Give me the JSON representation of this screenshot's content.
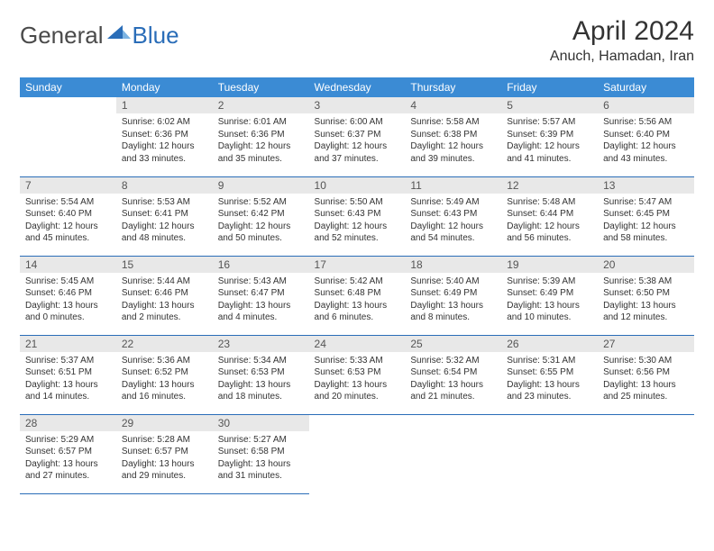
{
  "brand": {
    "part1": "General",
    "part2": "Blue"
  },
  "title": "April 2024",
  "location": "Anuch, Hamadan, Iran",
  "colors": {
    "header_bg": "#3b8bd4",
    "row_border": "#2a6db8",
    "daynum_bg": "#e8e8e8",
    "brand_blue": "#2a6db8"
  },
  "dayNames": [
    "Sunday",
    "Monday",
    "Tuesday",
    "Wednesday",
    "Thursday",
    "Friday",
    "Saturday"
  ],
  "weeks": [
    [
      {
        "n": "",
        "empty": true
      },
      {
        "n": "1",
        "sunrise": "6:02 AM",
        "sunset": "6:36 PM",
        "dl1": "12 hours",
        "dl2": "33 minutes."
      },
      {
        "n": "2",
        "sunrise": "6:01 AM",
        "sunset": "6:36 PM",
        "dl1": "12 hours",
        "dl2": "35 minutes."
      },
      {
        "n": "3",
        "sunrise": "6:00 AM",
        "sunset": "6:37 PM",
        "dl1": "12 hours",
        "dl2": "37 minutes."
      },
      {
        "n": "4",
        "sunrise": "5:58 AM",
        "sunset": "6:38 PM",
        "dl1": "12 hours",
        "dl2": "39 minutes."
      },
      {
        "n": "5",
        "sunrise": "5:57 AM",
        "sunset": "6:39 PM",
        "dl1": "12 hours",
        "dl2": "41 minutes."
      },
      {
        "n": "6",
        "sunrise": "5:56 AM",
        "sunset": "6:40 PM",
        "dl1": "12 hours",
        "dl2": "43 minutes."
      }
    ],
    [
      {
        "n": "7",
        "sunrise": "5:54 AM",
        "sunset": "6:40 PM",
        "dl1": "12 hours",
        "dl2": "45 minutes."
      },
      {
        "n": "8",
        "sunrise": "5:53 AM",
        "sunset": "6:41 PM",
        "dl1": "12 hours",
        "dl2": "48 minutes."
      },
      {
        "n": "9",
        "sunrise": "5:52 AM",
        "sunset": "6:42 PM",
        "dl1": "12 hours",
        "dl2": "50 minutes."
      },
      {
        "n": "10",
        "sunrise": "5:50 AM",
        "sunset": "6:43 PM",
        "dl1": "12 hours",
        "dl2": "52 minutes."
      },
      {
        "n": "11",
        "sunrise": "5:49 AM",
        "sunset": "6:43 PM",
        "dl1": "12 hours",
        "dl2": "54 minutes."
      },
      {
        "n": "12",
        "sunrise": "5:48 AM",
        "sunset": "6:44 PM",
        "dl1": "12 hours",
        "dl2": "56 minutes."
      },
      {
        "n": "13",
        "sunrise": "5:47 AM",
        "sunset": "6:45 PM",
        "dl1": "12 hours",
        "dl2": "58 minutes."
      }
    ],
    [
      {
        "n": "14",
        "sunrise": "5:45 AM",
        "sunset": "6:46 PM",
        "dl1": "13 hours",
        "dl2": "0 minutes."
      },
      {
        "n": "15",
        "sunrise": "5:44 AM",
        "sunset": "6:46 PM",
        "dl1": "13 hours",
        "dl2": "2 minutes."
      },
      {
        "n": "16",
        "sunrise": "5:43 AM",
        "sunset": "6:47 PM",
        "dl1": "13 hours",
        "dl2": "4 minutes."
      },
      {
        "n": "17",
        "sunrise": "5:42 AM",
        "sunset": "6:48 PM",
        "dl1": "13 hours",
        "dl2": "6 minutes."
      },
      {
        "n": "18",
        "sunrise": "5:40 AM",
        "sunset": "6:49 PM",
        "dl1": "13 hours",
        "dl2": "8 minutes."
      },
      {
        "n": "19",
        "sunrise": "5:39 AM",
        "sunset": "6:49 PM",
        "dl1": "13 hours",
        "dl2": "10 minutes."
      },
      {
        "n": "20",
        "sunrise": "5:38 AM",
        "sunset": "6:50 PM",
        "dl1": "13 hours",
        "dl2": "12 minutes."
      }
    ],
    [
      {
        "n": "21",
        "sunrise": "5:37 AM",
        "sunset": "6:51 PM",
        "dl1": "13 hours",
        "dl2": "14 minutes."
      },
      {
        "n": "22",
        "sunrise": "5:36 AM",
        "sunset": "6:52 PM",
        "dl1": "13 hours",
        "dl2": "16 minutes."
      },
      {
        "n": "23",
        "sunrise": "5:34 AM",
        "sunset": "6:53 PM",
        "dl1": "13 hours",
        "dl2": "18 minutes."
      },
      {
        "n": "24",
        "sunrise": "5:33 AM",
        "sunset": "6:53 PM",
        "dl1": "13 hours",
        "dl2": "20 minutes."
      },
      {
        "n": "25",
        "sunrise": "5:32 AM",
        "sunset": "6:54 PM",
        "dl1": "13 hours",
        "dl2": "21 minutes."
      },
      {
        "n": "26",
        "sunrise": "5:31 AM",
        "sunset": "6:55 PM",
        "dl1": "13 hours",
        "dl2": "23 minutes."
      },
      {
        "n": "27",
        "sunrise": "5:30 AM",
        "sunset": "6:56 PM",
        "dl1": "13 hours",
        "dl2": "25 minutes."
      }
    ],
    [
      {
        "n": "28",
        "sunrise": "5:29 AM",
        "sunset": "6:57 PM",
        "dl1": "13 hours",
        "dl2": "27 minutes."
      },
      {
        "n": "29",
        "sunrise": "5:28 AM",
        "sunset": "6:57 PM",
        "dl1": "13 hours",
        "dl2": "29 minutes."
      },
      {
        "n": "30",
        "sunrise": "5:27 AM",
        "sunset": "6:58 PM",
        "dl1": "13 hours",
        "dl2": "31 minutes."
      },
      {
        "n": "",
        "blank": true
      },
      {
        "n": "",
        "blank": true
      },
      {
        "n": "",
        "blank": true
      },
      {
        "n": "",
        "blank": true
      }
    ]
  ]
}
